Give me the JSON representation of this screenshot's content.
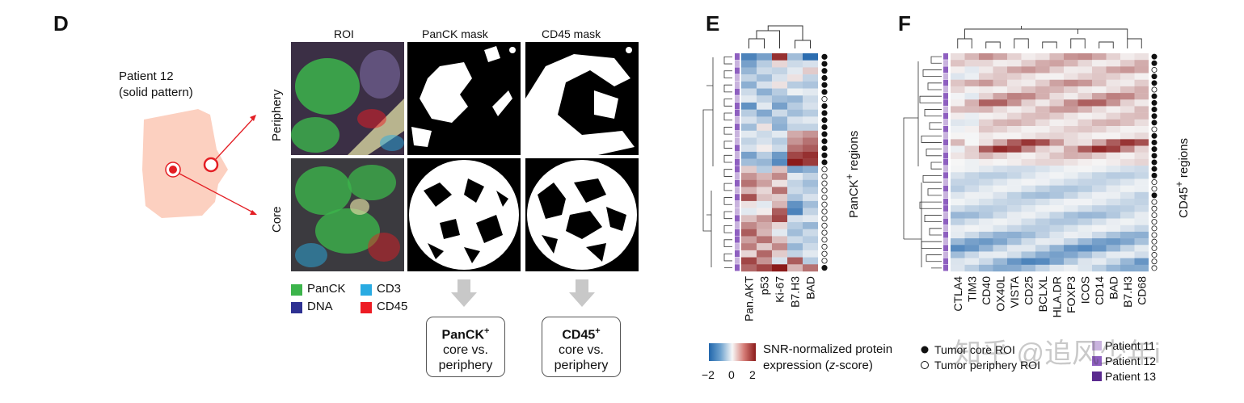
{
  "panelD": {
    "letter": "D",
    "patient_line1": "Patient 12",
    "patient_line2": "(solid pattern)",
    "col_roi": "ROI",
    "col_panck": "PanCK mask",
    "col_cd45": "CD45 mask",
    "row_periphery": "Periphery",
    "row_core": "Core",
    "legend": [
      {
        "label": "PanCK",
        "color": "#3cb44b"
      },
      {
        "label": "DNA",
        "color": "#2e3192"
      },
      {
        "label": "CD3",
        "color": "#29abe2"
      },
      {
        "label": "CD45",
        "color": "#ed1c24"
      }
    ],
    "box1_title": "PanCK",
    "box1_sup": "+",
    "box1_line2": "core vs.",
    "box1_line3": "periphery",
    "box2_title": "CD45",
    "box2_sup": "+",
    "box2_line2": "core vs.",
    "box2_line3": "periphery"
  },
  "panelE": {
    "letter": "E",
    "columns": [
      "Pan.AKT",
      "p53",
      "Ki-67",
      "B7.H3",
      "BAD"
    ],
    "side_label": "PanCK",
    "side_sup": "+",
    "side_label_end": " regions",
    "roi_types": [
      "core",
      "core",
      "core",
      "core",
      "core",
      "core",
      "periphery",
      "core",
      "core",
      "core",
      "core",
      "core",
      "core",
      "core",
      "core",
      "core",
      "periphery",
      "periphery",
      "periphery",
      "periphery",
      "periphery",
      "periphery",
      "periphery",
      "periphery",
      "periphery",
      "periphery",
      "periphery",
      "periphery",
      "periphery",
      "periphery",
      "core"
    ],
    "patients": [
      2,
      1,
      2,
      1,
      1,
      2,
      1,
      2,
      2,
      1,
      2,
      1,
      1,
      2,
      1,
      2,
      2,
      1,
      2,
      1,
      2,
      1,
      1,
      2,
      1,
      2,
      2,
      1,
      2,
      1,
      2
    ],
    "matrix": [
      [
        -1.6,
        -1.2,
        1.8,
        -0.8,
        -1.9
      ],
      [
        -1.2,
        -0.6,
        0.3,
        -0.4,
        -0.3
      ],
      [
        -0.9,
        -0.4,
        -0.5,
        -0.2,
        0.4
      ],
      [
        -0.5,
        -0.8,
        -0.3,
        0.2,
        -0.5
      ],
      [
        -1.0,
        -0.3,
        0.2,
        -0.6,
        -0.7
      ],
      [
        -0.4,
        -1.0,
        -0.6,
        -0.1,
        -0.2
      ],
      [
        -0.2,
        -0.5,
        -0.8,
        -0.9,
        -0.4
      ],
      [
        -1.4,
        -0.2,
        -1.2,
        -0.6,
        -0.3
      ],
      [
        -0.6,
        -1.1,
        -0.4,
        -0.8,
        -0.6
      ],
      [
        -0.3,
        -0.6,
        -0.9,
        -0.3,
        -0.2
      ],
      [
        -0.8,
        0.2,
        -1.0,
        -0.5,
        -0.5
      ],
      [
        -0.2,
        -0.4,
        -0.2,
        0.7,
        0.9
      ],
      [
        -0.5,
        -0.3,
        -0.6,
        0.9,
        1.2
      ],
      [
        -0.3,
        0.1,
        -0.4,
        1.2,
        1.4
      ],
      [
        -1.2,
        -0.6,
        -1.3,
        1.6,
        1.8
      ],
      [
        -0.8,
        -0.9,
        -1.5,
        2.0,
        1.7
      ],
      [
        0.4,
        -0.6,
        0.5,
        -1.2,
        -1.0
      ],
      [
        0.9,
        0.6,
        1.0,
        -0.2,
        -0.5
      ],
      [
        1.2,
        0.8,
        0.2,
        -0.5,
        -0.8
      ],
      [
        0.6,
        0.3,
        1.2,
        -0.4,
        -0.6
      ],
      [
        1.5,
        0.5,
        0.4,
        -0.7,
        -0.3
      ],
      [
        0.2,
        -0.2,
        0.6,
        -1.4,
        -0.8
      ],
      [
        -0.2,
        0.1,
        1.4,
        -1.6,
        -0.5
      ],
      [
        0.5,
        0.9,
        1.6,
        -0.3,
        -0.2
      ],
      [
        1.0,
        0.7,
        0.3,
        -0.6,
        -0.9
      ],
      [
        1.4,
        0.6,
        -0.2,
        -0.8,
        -0.4
      ],
      [
        0.8,
        1.2,
        0.5,
        -0.4,
        -0.6
      ],
      [
        1.1,
        0.4,
        1.0,
        -0.9,
        -0.4
      ],
      [
        0.3,
        1.3,
        0.4,
        -0.5,
        -0.2
      ],
      [
        1.6,
        0.9,
        -0.3,
        1.4,
        -0.6
      ],
      [
        1.3,
        1.6,
        2.0,
        0.6,
        1.2
      ]
    ]
  },
  "panelF": {
    "letter": "F",
    "columns": [
      "CTLA4",
      "TIM3",
      "CD40",
      "OX40L",
      "VISTA",
      "CD25",
      "BCLXL",
      "HLA.DR",
      "FOXP3",
      "ICOS",
      "CD14",
      "BAD",
      "B7.H3",
      "CD68"
    ],
    "side_label": "CD45",
    "side_sup": "+",
    "side_label_end": " regions",
    "roi_types": [
      "core",
      "core",
      "periphery",
      "core",
      "core",
      "periphery",
      "core",
      "core",
      "core",
      "core",
      "core",
      "periphery",
      "core",
      "core",
      "core",
      "core",
      "core",
      "core",
      "core",
      "periphery",
      "periphery",
      "core",
      "periphery",
      "periphery",
      "periphery",
      "periphery",
      "periphery",
      "periphery",
      "periphery",
      "periphery",
      "periphery",
      "periphery",
      "periphery"
    ],
    "patients": [
      2,
      1,
      2,
      1,
      2,
      1,
      2,
      2,
      1,
      2,
      1,
      2,
      1,
      2,
      1,
      2,
      2,
      1,
      2,
      1,
      2,
      1,
      2,
      2,
      1,
      2,
      1,
      2,
      1,
      2,
      1,
      2,
      2
    ],
    "hot_rows": [
      0,
      1,
      2,
      3,
      4,
      5,
      6,
      7,
      8,
      9,
      10,
      11,
      12,
      13,
      14,
      15,
      16
    ],
    "warm_levels": [
      0.9,
      0.7,
      0.8,
      0.4,
      0.9,
      0.6,
      1.0,
      1.3,
      0.8,
      0.5,
      0.6,
      0.4,
      0.3,
      1.6,
      1.7,
      0.6,
      0.3
    ],
    "cool_levels": [
      -0.4,
      -0.6,
      -0.5,
      -0.7,
      -0.8,
      -0.5,
      -0.6,
      -0.9,
      -0.7,
      -0.6,
      -1.0,
      -1.3,
      -1.5,
      -1.2,
      -1.6,
      -1.1
    ]
  },
  "colorbar": {
    "min_label": "−2",
    "mid_label": "0",
    "max_label": "2",
    "title_line1": "SNR-normalized protein",
    "title_line2": "expression (",
    "title_italic": "z",
    "title_end": "-score)"
  },
  "roi_legend": {
    "core_label": "Tumor core ROI",
    "periphery_label": "Tumor periphery ROI"
  },
  "patient_legend": [
    {
      "label": "Patient 11",
      "color": "#c9b3de"
    },
    {
      "label": "Patient 12",
      "color": "#8e5fc0"
    },
    {
      "label": "Patient 13",
      "color": "#5a2a8f"
    }
  ],
  "watermark": "知乎 @追风少年i"
}
